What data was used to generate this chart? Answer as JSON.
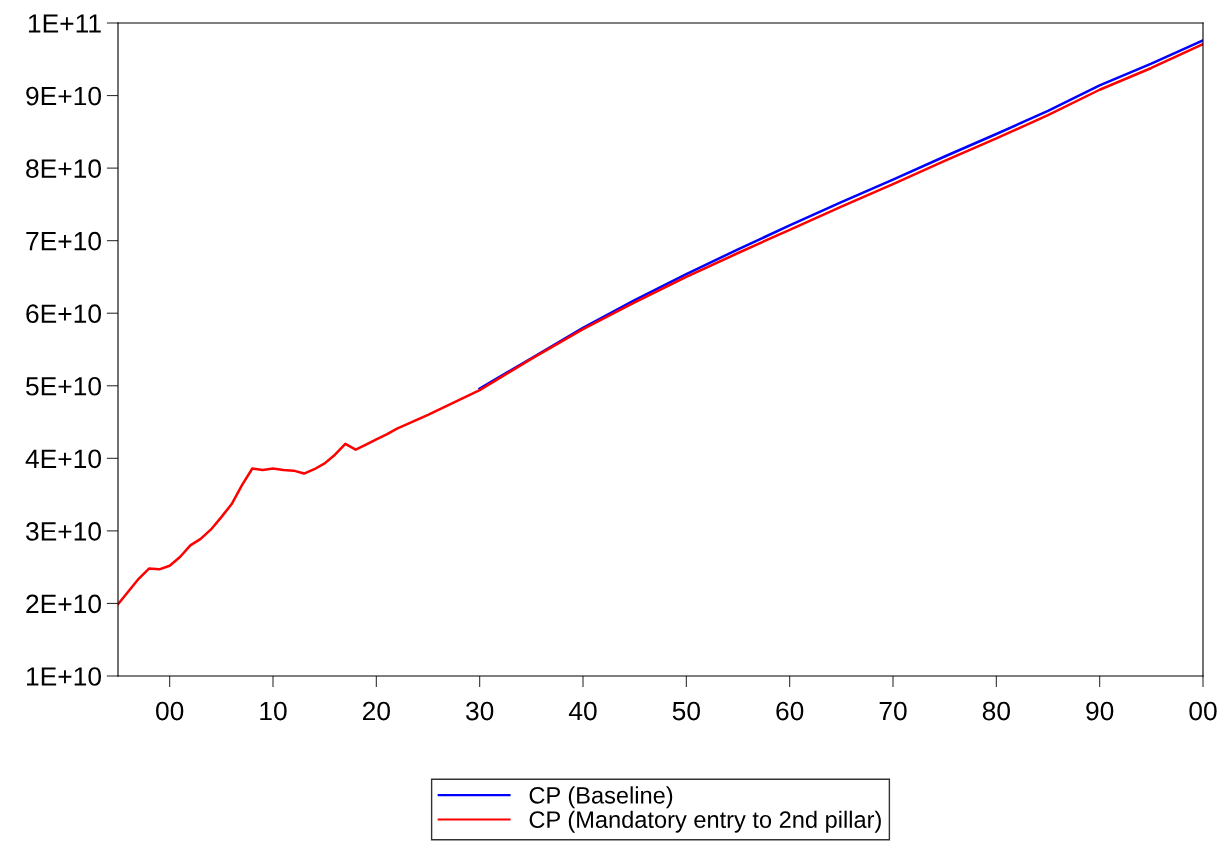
{
  "chart_data": {
    "type": "line",
    "x": [
      1995,
      1997,
      1998,
      1999,
      2000,
      2001,
      2002,
      2003,
      2004,
      2005,
      2006,
      2007,
      2008,
      2009,
      2010,
      2011,
      2012,
      2013,
      2014,
      2015,
      2016,
      2017,
      2018,
      2019,
      2020,
      2021,
      2022,
      2025,
      2030,
      2035,
      2040,
      2045,
      2050,
      2055,
      2060,
      2065,
      2070,
      2075,
      2080,
      2085,
      2090,
      2095,
      2100
    ],
    "series": [
      {
        "name": "CP (Baseline)",
        "color": "#0000ff",
        "values": [
          null,
          null,
          null,
          null,
          null,
          null,
          null,
          null,
          null,
          null,
          null,
          null,
          null,
          null,
          null,
          null,
          null,
          null,
          null,
          null,
          null,
          null,
          null,
          null,
          null,
          null,
          null,
          null,
          49600000000.0,
          53800000000.0,
          58000000000.0,
          61800000000.0,
          65400000000.0,
          68800000000.0,
          72100000000.0,
          75300000000.0,
          78400000000.0,
          81600000000.0,
          84700000000.0,
          87900000000.0,
          91400000000.0,
          94400000000.0,
          97600000000.0
        ]
      },
      {
        "name": "CP (Mandatory entry to 2nd pillar)",
        "color": "#ff0000",
        "values": [
          19900000000.0,
          23400000000.0,
          24800000000.0,
          24700000000.0,
          25200000000.0,
          26400000000.0,
          28000000000.0,
          28900000000.0,
          30200000000.0,
          31900000000.0,
          33700000000.0,
          36300000000.0,
          38600000000.0,
          38400000000.0,
          38600000000.0,
          38400000000.0,
          38300000000.0,
          37900000000.0,
          38500000000.0,
          39300000000.0,
          40500000000.0,
          42000000000.0,
          41200000000.0,
          41900000000.0,
          42600000000.0,
          43300000000.0,
          44100000000.0,
          46000000000.0,
          49400000000.0,
          53700000000.0,
          57800000000.0,
          61500000000.0,
          65000000000.0,
          68300000000.0,
          71500000000.0,
          74700000000.0,
          77800000000.0,
          81000000000.0,
          84100000000.0,
          87300000000.0,
          90800000000.0,
          93800000000.0,
          97100000000.0
        ]
      }
    ],
    "xlim": [
      1995,
      2100
    ],
    "xticks": [
      {
        "value": 2000,
        "label": "00"
      },
      {
        "value": 2010,
        "label": "10"
      },
      {
        "value": 2020,
        "label": "20"
      },
      {
        "value": 2030,
        "label": "30"
      },
      {
        "value": 2040,
        "label": "40"
      },
      {
        "value": 2050,
        "label": "50"
      },
      {
        "value": 2060,
        "label": "60"
      },
      {
        "value": 2070,
        "label": "70"
      },
      {
        "value": 2080,
        "label": "80"
      },
      {
        "value": 2090,
        "label": "90"
      },
      {
        "value": 2100,
        "label": "00"
      }
    ],
    "ylim": [
      10000000000.0,
      100000000000.0
    ],
    "yticks": [
      {
        "value": 10000000000.0,
        "label": "1E+10"
      },
      {
        "value": 20000000000.0,
        "label": "2E+10"
      },
      {
        "value": 30000000000.0,
        "label": "3E+10"
      },
      {
        "value": 40000000000.0,
        "label": "4E+10"
      },
      {
        "value": 50000000000.0,
        "label": "5E+10"
      },
      {
        "value": 60000000000.0,
        "label": "6E+10"
      },
      {
        "value": 70000000000.0,
        "label": "7E+10"
      },
      {
        "value": 80000000000.0,
        "label": "8E+10"
      },
      {
        "value": 90000000000.0,
        "label": "9E+10"
      },
      {
        "value": 100000000000.0,
        "label": "1E+11"
      }
    ],
    "grid": false,
    "legend": "bottom",
    "marker": "none",
    "line_style": "solid"
  }
}
